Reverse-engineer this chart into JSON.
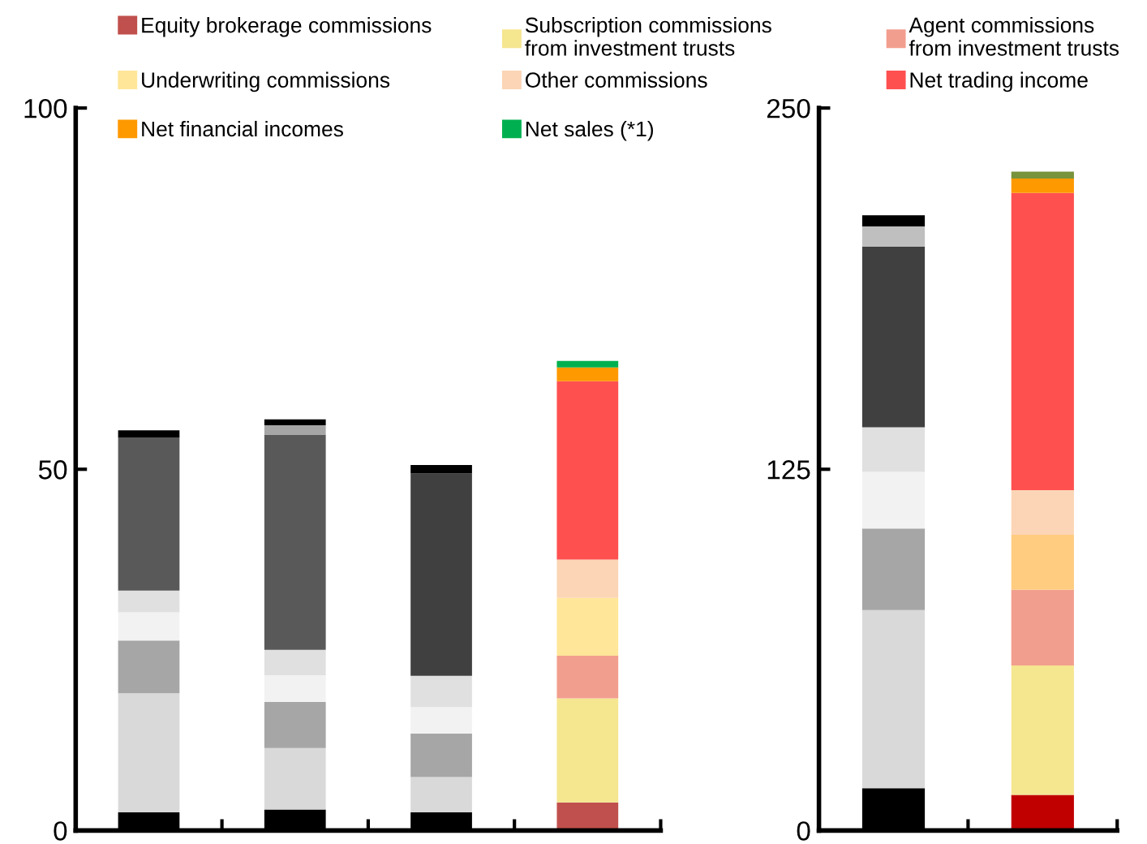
{
  "chart_data": [
    {
      "type": "bar",
      "stacked": true,
      "categories": [
        null,
        null,
        null,
        null
      ],
      "ylim": [
        0,
        100
      ],
      "yticks": [
        0,
        50,
        100
      ],
      "grid": false,
      "legend": "top",
      "tick_labels": "y",
      "series": [
        {
          "name": "Equity brokerage commissions",
          "color": "#c0504d",
          "colors": [
            "#000000",
            "#000000",
            "#000000",
            "#c0504d"
          ],
          "values": [
            2.5,
            2.9,
            2.5,
            3.9
          ]
        },
        {
          "name": "Subscription commissions\nfrom investment trusts",
          "color": "#f5e690",
          "colors": [
            "#d9d9d9",
            "#d9d9d9",
            "#d9d9d9",
            "#f5e690"
          ],
          "values": [
            16.5,
            8.5,
            4.9,
            14.4
          ]
        },
        {
          "name": "Agent commissions\nfrom investment trusts",
          "color": "#f29e8e",
          "colors": [
            "#a6a6a6",
            "#a6a6a6",
            "#a6a6a6",
            "#f29e8e"
          ],
          "values": [
            7.3,
            6.4,
            6.0,
            5.9
          ]
        },
        {
          "name": "Underwriting commissions",
          "color": "#ffe699",
          "colors": [
            "#f2f2f2",
            "#f2f2f2",
            "#f2f2f2",
            "#ffe699"
          ],
          "values": [
            3.9,
            3.7,
            3.7,
            8.0
          ]
        },
        {
          "name": "Other commissions",
          "color": "#fbd5b5",
          "colors": [
            "#e0e0e0",
            "#e0e0e0",
            "#e0e0e0",
            "#fbd5b5"
          ],
          "values": [
            3.0,
            3.5,
            4.3,
            5.3
          ]
        },
        {
          "name": "Net trading income",
          "color": "#ff5050",
          "colors": [
            "#595959",
            "#595959",
            "#404040",
            "#ff5050"
          ],
          "values": [
            21.2,
            29.8,
            28.0,
            24.7
          ]
        },
        {
          "name": "Net financial incomes",
          "color": "#ff9900",
          "colors": [
            "#a6a6a6",
            "#a6a6a6",
            "#a6a6a6",
            "#ff9900"
          ],
          "values": [
            null,
            1.3,
            null,
            1.9
          ]
        },
        {
          "name": "Net sales (*1)",
          "color": "#00b050",
          "colors": [
            "#000000",
            "#000000",
            "#000000",
            "#00b050"
          ],
          "values": [
            1.0,
            0.8,
            1.2,
            0.9
          ]
        }
      ]
    },
    {
      "type": "bar",
      "stacked": true,
      "categories": [
        null,
        null
      ],
      "ylim": [
        0,
        250
      ],
      "yticks": [
        0,
        125,
        250
      ],
      "grid": false,
      "tick_labels": "y",
      "series": [
        {
          "colors": [
            "#000000",
            "#c00000"
          ],
          "values": [
            14.6,
            12.3
          ]
        },
        {
          "colors": [
            "#d9d9d9",
            "#f5e690"
          ],
          "values": [
            61.7,
            44.8
          ]
        },
        {
          "colors": [
            "#a6a6a6",
            "#f29e8e"
          ],
          "values": [
            28.2,
            26.2
          ]
        },
        {
          "colors": [
            "#f2f2f2",
            "#ffcc80"
          ],
          "values": [
            19.6,
            19.0
          ]
        },
        {
          "colors": [
            "#e0e0e0",
            "#fbd5b5"
          ],
          "values": [
            15.4,
            15.5
          ]
        },
        {
          "colors": [
            "#404040",
            "#ff5050"
          ],
          "values": [
            62.6,
            102.8
          ]
        },
        {
          "colors": [
            "#bfbfbf",
            "#ff9900"
          ],
          "values": [
            6.9,
            5.0
          ]
        },
        {
          "colors": [
            "#000000",
            "#77933c"
          ],
          "values": [
            3.9,
            2.4
          ]
        }
      ]
    }
  ]
}
